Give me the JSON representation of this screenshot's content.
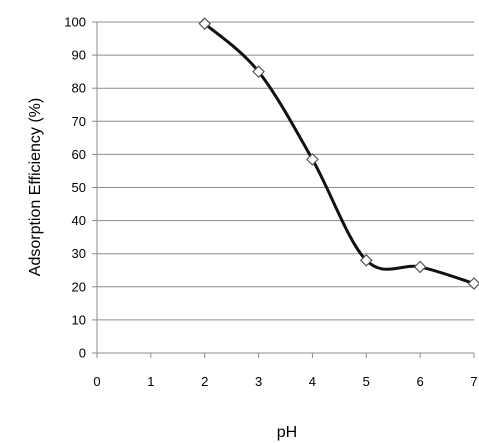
{
  "chart_data": {
    "type": "line",
    "xlabel": "pH",
    "ylabel": "Adsorption Efficiency (%)",
    "xlim": [
      0,
      7
    ],
    "ylim": [
      0,
      100
    ],
    "x_ticks": [
      "0",
      "1",
      "2",
      "3",
      "4",
      "5",
      "6",
      "7"
    ],
    "y_ticks": [
      "0",
      "10",
      "20",
      "30",
      "40",
      "50",
      "60",
      "70",
      "80",
      "90",
      "100"
    ],
    "grid": "horizontal",
    "legend": "none",
    "line_style": "smooth",
    "marker": "open-diamond",
    "series": [
      {
        "x": [
          2,
          3,
          4,
          5,
          6,
          7
        ],
        "y": [
          99.5,
          85,
          58.5,
          28,
          26,
          21
        ]
      }
    ],
    "colors": {
      "line": "#111111",
      "grid": "#8c8c8c",
      "marker_fill": "#ffffff",
      "marker_stroke": "#555555"
    }
  }
}
